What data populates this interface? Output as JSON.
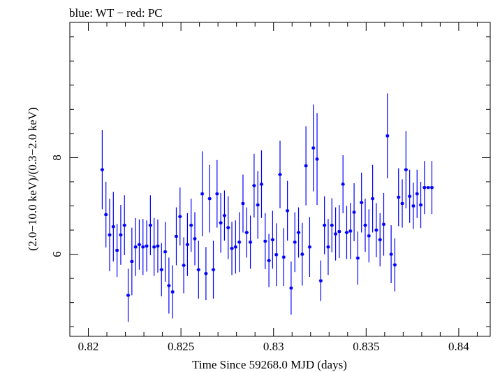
{
  "chart_data": {
    "type": "scatter",
    "title": "blue: WT − red: PC",
    "xlabel": "Time Since 59268.0 MJD (days)",
    "ylabel": "(2.0−10.0 keV)/(0.3−2.0 keV)",
    "xlim": [
      0.819,
      0.8417
    ],
    "ylim": [
      4.3,
      10.8
    ],
    "xticks": [
      0.82,
      0.825,
      0.83,
      0.835,
      0.84
    ],
    "xtick_labels": [
      "0.82",
      "0.825",
      "0.83",
      "0.835",
      "0.84"
    ],
    "yticks": [
      6,
      8
    ],
    "ytick_labels": [
      "6",
      "8"
    ],
    "grid": false,
    "series": [
      {
        "color": "#0000ff",
        "x": [
          0.82075,
          0.82095,
          0.82115,
          0.82135,
          0.82155,
          0.82175,
          0.82195,
          0.82215,
          0.82235,
          0.82255,
          0.82275,
          0.82295,
          0.82315,
          0.82335,
          0.82355,
          0.82375,
          0.82395,
          0.82415,
          0.82435,
          0.82455,
          0.82475,
          0.82495,
          0.82515,
          0.82535,
          0.82555,
          0.82575,
          0.82595,
          0.82615,
          0.82635,
          0.82655,
          0.82675,
          0.82695,
          0.82715,
          0.82735,
          0.82755,
          0.82775,
          0.82795,
          0.82815,
          0.82835,
          0.82855,
          0.82875,
          0.82895,
          0.82915,
          0.82935,
          0.82955,
          0.82975,
          0.82995,
          0.83015,
          0.83035,
          0.83055,
          0.83075,
          0.83095,
          0.83115,
          0.83135,
          0.83155,
          0.83175,
          0.83195,
          0.83215,
          0.83235,
          0.83255,
          0.83275,
          0.83295,
          0.83315,
          0.83335,
          0.83355,
          0.83375,
          0.83395,
          0.83415,
          0.83435,
          0.83455,
          0.83475,
          0.83495,
          0.83515,
          0.83535,
          0.83555,
          0.83575,
          0.83595,
          0.83615,
          0.83635,
          0.83655,
          0.83675,
          0.83695,
          0.83715,
          0.83735,
          0.83755,
          0.83775,
          0.83795,
          0.83815,
          0.83835,
          0.83855
        ],
        "y": [
          7.75,
          6.82,
          6.4,
          6.57,
          6.08,
          6.4,
          6.6,
          5.15,
          5.85,
          6.15,
          6.2,
          6.15,
          6.17,
          6.6,
          6.15,
          6.17,
          5.68,
          6.05,
          5.35,
          5.22,
          6.37,
          6.78,
          5.77,
          6.2,
          6.6,
          6.32,
          5.68,
          7.25,
          5.6,
          7.15,
          5.68,
          7.25,
          6.65,
          6.8,
          6.55,
          6.12,
          6.15,
          6.25,
          7.05,
          6.45,
          6.25,
          7.42,
          7.02,
          7.45,
          6.27,
          5.87,
          6.3,
          5.99,
          7.65,
          5.94,
          6.9,
          5.3,
          6.25,
          6.45,
          6.0,
          7.83,
          6.15,
          8.2,
          7.97,
          5.45,
          6.6,
          6.15,
          6.6,
          6.42,
          6.47,
          7.45,
          6.45,
          6.48,
          6.87,
          5.92,
          7.07,
          6.6,
          6.38,
          7.15,
          6.5,
          6.3,
          6.62,
          8.45,
          6.0,
          5.78,
          7.18,
          7.05,
          7.75,
          7.2,
          7.0,
          7.25,
          7.02,
          7.38,
          7.38,
          7.38
        ],
        "yerr": [
          0.82,
          0.68,
          0.75,
          0.72,
          0.55,
          0.62,
          0.62,
          0.55,
          0.7,
          0.6,
          0.52,
          0.58,
          0.53,
          0.62,
          0.6,
          0.55,
          0.55,
          0.62,
          0.58,
          0.55,
          0.6,
          0.6,
          0.58,
          0.65,
          0.55,
          0.55,
          0.6,
          0.88,
          0.55,
          0.7,
          0.6,
          0.7,
          0.62,
          0.52,
          0.65,
          0.55,
          0.55,
          0.62,
          0.6,
          0.52,
          0.55,
          0.66,
          0.7,
          0.7,
          0.58,
          0.55,
          0.6,
          0.65,
          0.7,
          0.6,
          0.62,
          0.55,
          0.62,
          0.52,
          0.65,
          0.82,
          0.62,
          0.9,
          0.95,
          0.42,
          0.6,
          0.58,
          0.56,
          0.55,
          0.55,
          0.6,
          0.55,
          0.58,
          0.6,
          0.55,
          0.62,
          0.55,
          0.55,
          0.7,
          0.56,
          0.55,
          0.65,
          0.88,
          0.6,
          0.55,
          0.6,
          0.5,
          0.8,
          0.55,
          0.48,
          0.5,
          0.48,
          0.55,
          0.0,
          0.55
        ],
        "xerr": 0.0001
      }
    ]
  }
}
